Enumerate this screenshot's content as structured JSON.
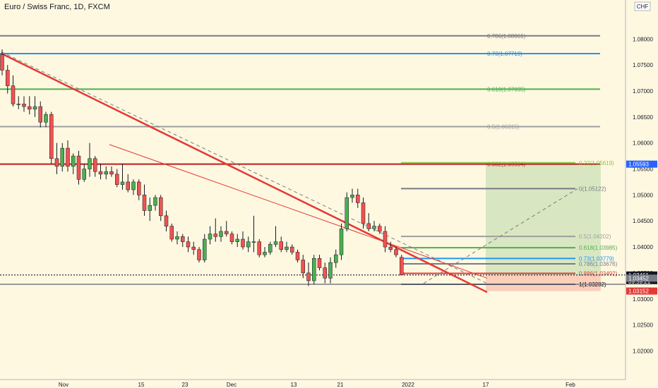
{
  "header": {
    "title": "Euro / Swiss Franc, 1D, FXCM",
    "currency": "CHF"
  },
  "colors": {
    "up": "#4caf50",
    "down": "#ef5350",
    "bg": "#fff8e1",
    "trend": "#e53935",
    "dashed": "#787b86"
  },
  "chart_data": {
    "type": "candlestick",
    "title": "Euro / Swiss Franc, 1D, FXCM",
    "ylim": [
      1.0145,
      1.0875
    ],
    "y_ticks": [
      "1.08000",
      "1.07500",
      "1.07000",
      "1.06500",
      "1.06000",
      "1.05500",
      "1.05000",
      "1.04500",
      "1.04000",
      "1.03500",
      "1.03000",
      "1.02500",
      "1.02000"
    ],
    "x_ticks": [
      "Nov",
      "15",
      "23",
      "Dec",
      "13",
      "21",
      "2022",
      "17",
      "Feb"
    ],
    "candles": [
      [
        1.077,
        1.078,
        1.073,
        1.074
      ],
      [
        1.074,
        1.075,
        1.0695,
        1.071
      ],
      [
        1.071,
        1.073,
        1.067,
        1.0675
      ],
      [
        1.0675,
        1.069,
        1.0665,
        1.0675
      ],
      [
        1.0675,
        1.069,
        1.066,
        1.067
      ],
      [
        1.067,
        1.069,
        1.0655,
        1.0665
      ],
      [
        1.0665,
        1.069,
        1.065,
        1.067
      ],
      [
        1.067,
        1.068,
        1.063,
        1.064
      ],
      [
        1.064,
        1.066,
        1.063,
        1.0655
      ],
      [
        1.0655,
        1.066,
        1.056,
        1.057
      ],
      [
        1.057,
        1.06,
        1.054,
        1.0555
      ],
      [
        1.0555,
        1.06,
        1.0545,
        1.059
      ],
      [
        1.059,
        1.0605,
        1.0545,
        1.0555
      ],
      [
        1.0555,
        1.058,
        1.054,
        1.0575
      ],
      [
        1.0575,
        1.0585,
        1.052,
        1.053
      ],
      [
        1.053,
        1.056,
        1.0525,
        1.055
      ],
      [
        1.055,
        1.06,
        1.0535,
        1.057
      ],
      [
        1.057,
        1.0575,
        1.0535,
        1.0545
      ],
      [
        1.0545,
        1.056,
        1.053,
        1.054
      ],
      [
        1.054,
        1.0555,
        1.053,
        1.0545
      ],
      [
        1.0545,
        1.0555,
        1.0535,
        1.054
      ],
      [
        1.054,
        1.055,
        1.0515,
        1.052
      ],
      [
        1.052,
        1.056,
        1.051,
        1.0525
      ],
      [
        1.0525,
        1.054,
        1.0505,
        1.051
      ],
      [
        1.051,
        1.053,
        1.05,
        1.0525
      ],
      [
        1.0525,
        1.053,
        1.049,
        1.05
      ],
      [
        1.05,
        1.052,
        1.046,
        1.047
      ],
      [
        1.047,
        1.0495,
        1.045,
        1.048
      ],
      [
        1.048,
        1.05,
        1.047,
        1.0495
      ],
      [
        1.0495,
        1.05,
        1.045,
        1.046
      ],
      [
        1.046,
        1.047,
        1.043,
        1.044
      ],
      [
        1.044,
        1.0445,
        1.041,
        1.0415
      ],
      [
        1.0415,
        1.043,
        1.0405,
        1.042
      ],
      [
        1.042,
        1.0425,
        1.04,
        1.041
      ],
      [
        1.041,
        1.042,
        1.039,
        1.04
      ],
      [
        1.04,
        1.041,
        1.0385,
        1.0395
      ],
      [
        1.0395,
        1.04,
        1.037,
        1.0375
      ],
      [
        1.0375,
        1.0425,
        1.037,
        1.0415
      ],
      [
        1.0415,
        1.044,
        1.0405,
        1.0425
      ],
      [
        1.0425,
        1.0455,
        1.041,
        1.042
      ],
      [
        1.042,
        1.044,
        1.041,
        1.043
      ],
      [
        1.043,
        1.045,
        1.042,
        1.0425
      ],
      [
        1.0425,
        1.043,
        1.0405,
        1.041
      ],
      [
        1.041,
        1.0425,
        1.04,
        1.0415
      ],
      [
        1.0415,
        1.043,
        1.0395,
        1.04
      ],
      [
        1.04,
        1.042,
        1.039,
        1.041
      ],
      [
        1.041,
        1.046,
        1.039,
        1.041
      ],
      [
        1.041,
        1.0415,
        1.038,
        1.0385
      ],
      [
        1.0385,
        1.04,
        1.038,
        1.039
      ],
      [
        1.039,
        1.041,
        1.0385,
        1.0405
      ],
      [
        1.0405,
        1.044,
        1.04,
        1.041
      ],
      [
        1.041,
        1.042,
        1.039,
        1.0395
      ],
      [
        1.0395,
        1.041,
        1.039,
        1.04
      ],
      [
        1.04,
        1.0405,
        1.0385,
        1.039
      ],
      [
        1.039,
        1.0395,
        1.037,
        1.0375
      ],
      [
        1.0375,
        1.0385,
        1.034,
        1.035
      ],
      [
        1.035,
        1.037,
        1.0325,
        1.0335
      ],
      [
        1.0335,
        1.0385,
        1.0328,
        1.0378
      ],
      [
        1.0378,
        1.0385,
        1.0355,
        1.036
      ],
      [
        1.036,
        1.037,
        1.033,
        1.034
      ],
      [
        1.034,
        1.038,
        1.033,
        1.037
      ],
      [
        1.037,
        1.0395,
        1.036,
        1.0385
      ],
      [
        1.0385,
        1.0445,
        1.0375,
        1.0435
      ],
      [
        1.0435,
        1.0505,
        1.043,
        1.0495
      ],
      [
        1.0495,
        1.0512,
        1.0485,
        1.05
      ],
      [
        1.05,
        1.0512,
        1.0475,
        1.0485
      ],
      [
        1.0485,
        1.0495,
        1.0435,
        1.0445
      ],
      [
        1.0445,
        1.0465,
        1.043,
        1.0435
      ],
      [
        1.0435,
        1.045,
        1.043,
        1.044
      ],
      [
        1.044,
        1.0445,
        1.0425,
        1.043
      ],
      [
        1.043,
        1.044,
        1.039,
        1.04
      ],
      [
        1.04,
        1.041,
        1.039,
        1.0395
      ],
      [
        1.0395,
        1.04,
        1.038,
        1.0385
      ],
      [
        1.038,
        1.0385,
        1.0346,
        1.0346
      ]
    ],
    "current_price": "1.03461",
    "countdown": "09:59:21",
    "price_tags": [
      "1.05593",
      "1.03452",
      "1.03152"
    ]
  },
  "fib_left": [
    {
      "label": "0.786(1.08061)",
      "price": 1.08061,
      "color": "#787b86"
    },
    {
      "label": "0.73(1.07719)",
      "price": 1.07719,
      "color": "#2196f3"
    },
    {
      "label": "0.618(1.07035)",
      "price": 1.07035,
      "color": "#4caf50"
    },
    {
      "label": "0.5(1.06315)",
      "price": 1.06315,
      "color": "#9e9e9e"
    },
    {
      "label": "0.382(1.05594)",
      "price": 1.05594,
      "color": "#b71c1c"
    }
  ],
  "fib_right": [
    {
      "label": "0.27(1.05619)",
      "price": 1.05619,
      "color": "#8bc34a"
    },
    {
      "label": "0(1.05122)",
      "price": 1.05122,
      "color": "#787b86"
    },
    {
      "label": "0.5(1.04202)",
      "price": 1.04202,
      "color": "#9e9e9e"
    },
    {
      "label": "0.618(1.03985)",
      "price": 1.03985,
      "color": "#4caf50"
    },
    {
      "label": "0.73(1.03779)",
      "price": 1.03779,
      "color": "#2196f3"
    },
    {
      "label": "0.786(1.03676)",
      "price": 1.03676,
      "color": "#787b86"
    },
    {
      "label": "0.886(1.03492)",
      "price": 1.03492,
      "color": "#e53935"
    },
    {
      "label": "1(1.03282)",
      "price": 1.03282,
      "color": "#000000"
    }
  ]
}
